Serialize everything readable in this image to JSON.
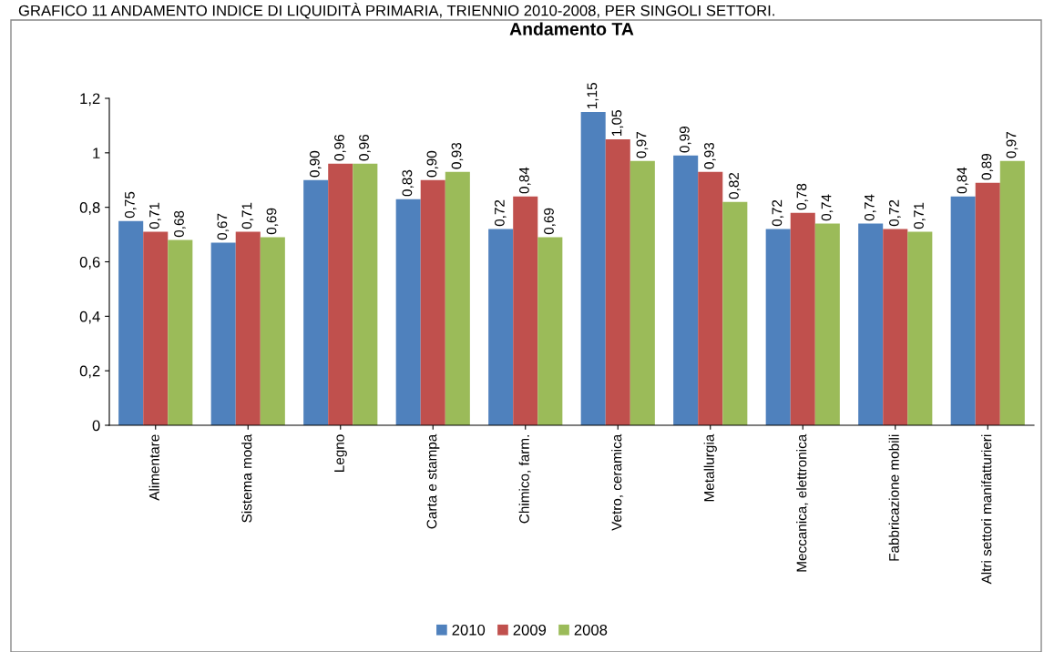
{
  "chart_data": {
    "type": "bar",
    "title": "Andamento TA",
    "annotations": [
      "GRAFICO 11 ANDAMENTO INDICE DI LIQUIDITÀ PRIMARIA, TRIENNIO 2010-2008, PER SINGOLI SETTORI."
    ],
    "categories": [
      "Alimentare",
      "Sistema moda",
      "Legno",
      "Carta e stampa",
      "Chimico, farm.",
      "Vetro, ceramica",
      "Metallurgia",
      "Meccanica, elettronica",
      "Fabbricazione mobili",
      "Altri settori manifatturieri"
    ],
    "series": [
      {
        "name": "2010",
        "color": "#4f81bd",
        "values": [
          0.75,
          0.67,
          0.9,
          0.83,
          0.72,
          1.15,
          0.99,
          0.72,
          0.74,
          0.84
        ],
        "value_labels": [
          "0,75",
          "0,67",
          "0,90",
          "0,83",
          "0,72",
          "1,15",
          "0,99",
          "0,72",
          "0,74",
          "0,84"
        ]
      },
      {
        "name": "2009",
        "color": "#c0504d",
        "values": [
          0.71,
          0.71,
          0.96,
          0.9,
          0.84,
          1.05,
          0.93,
          0.78,
          0.72,
          0.89
        ],
        "value_labels": [
          "0,71",
          "0,71",
          "0,96",
          "0,90",
          "0,84",
          "1,05",
          "0,93",
          "0,78",
          "0,72",
          "0,89"
        ]
      },
      {
        "name": "2008",
        "color": "#9bbb59",
        "values": [
          0.68,
          0.69,
          0.96,
          0.93,
          0.69,
          0.97,
          0.82,
          0.74,
          0.71,
          0.97
        ],
        "value_labels": [
          "0,68",
          "0,69",
          "0,96",
          "0,93",
          "0,69",
          "0,97",
          "0,82",
          "0,74",
          "0,71",
          "0,97"
        ]
      }
    ],
    "ylim": [
      0,
      1.2
    ],
    "yticks": [
      {
        "value": 0,
        "label": "0"
      },
      {
        "value": 0.2,
        "label": "0,2"
      },
      {
        "value": 0.4,
        "label": "0,4"
      },
      {
        "value": 0.6,
        "label": "0,6"
      },
      {
        "value": 0.8,
        "label": "0,8"
      },
      {
        "value": 1,
        "label": "1"
      },
      {
        "value": 1.2,
        "label": "1,2"
      }
    ],
    "grid": false,
    "legend": "bottom"
  }
}
